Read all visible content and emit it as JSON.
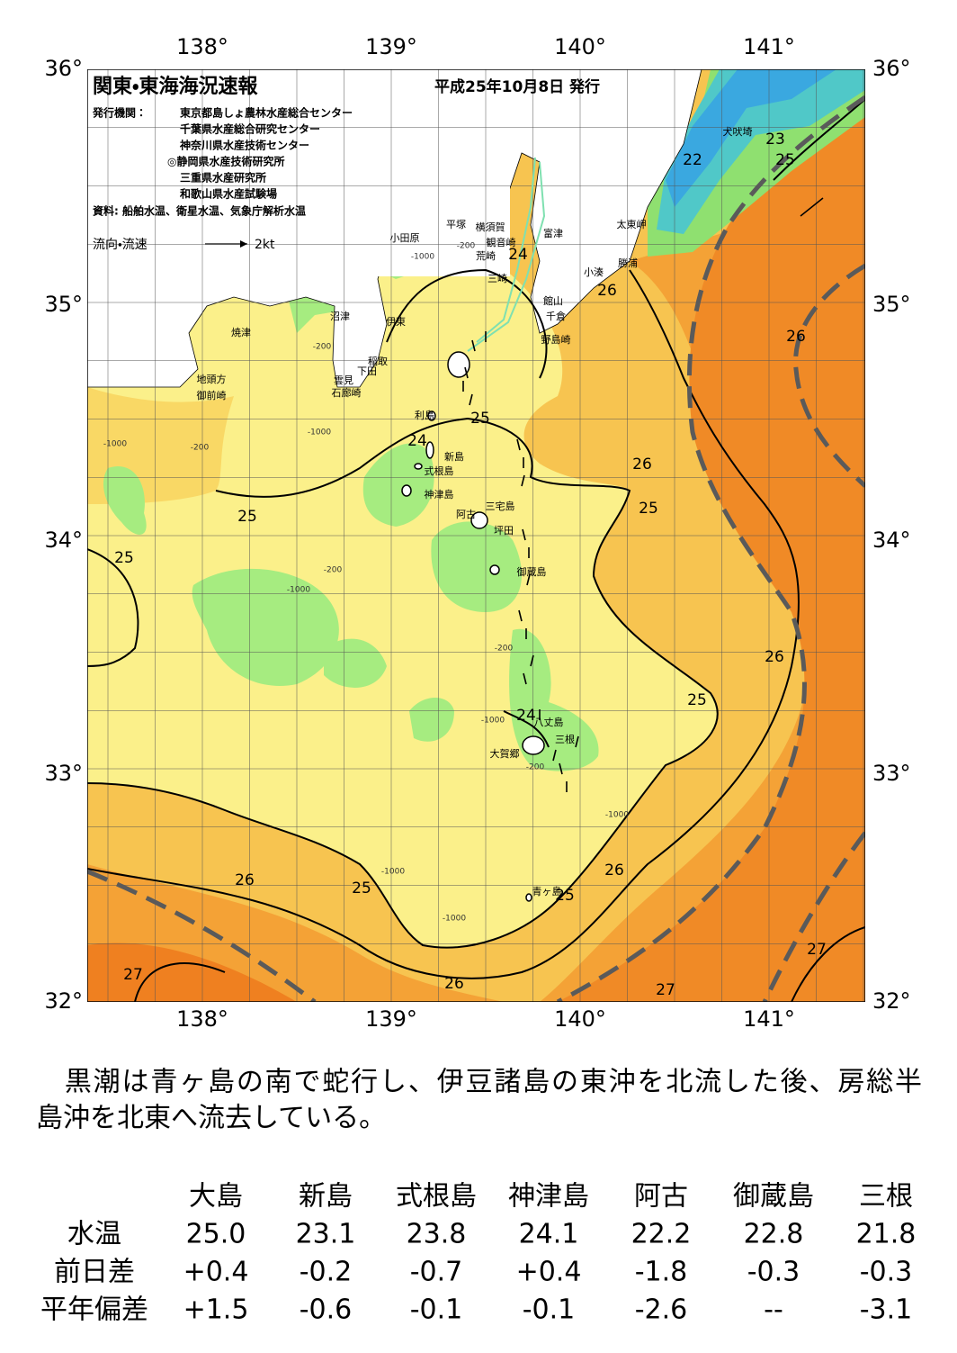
{
  "map": {
    "title": "関東・東海海況速報",
    "date": "平成25年10月8日 発行",
    "publisher_label": "発行機関：",
    "publishers": [
      "東京都島しょ農林水産総合センター",
      "千葉県水産総合研究センター",
      "神奈川県水産技術センター",
      "◎静岡県水産技術研究所",
      "三重県水産研究所",
      "和歌山県水産試験場"
    ],
    "source": "資料: 船舶水温、衛星水温、気象庁解析水温",
    "legend_label": "流向・流速",
    "legend_speed": "2kt",
    "lon_labels": [
      "138°",
      "139°",
      "140°",
      "141°"
    ],
    "lat_labels": [
      "36°",
      "35°",
      "34°",
      "33°",
      "32°"
    ],
    "place_names": [
      "犬吠埼",
      "太東岬",
      "勝浦",
      "小湊",
      "富津",
      "館山",
      "千倉",
      "野島崎",
      "横須賀",
      "観音崎",
      "荒崎",
      "三崎",
      "平塚",
      "小田原",
      "沼津",
      "伊東",
      "稲取",
      "下田",
      "雲見",
      "石廊崎",
      "焼津",
      "地頭方",
      "御前崎",
      "利島",
      "新島",
      "式根島",
      "神津島",
      "三宅島",
      "阿古",
      "坪田",
      "御蔵島",
      "八丈島",
      "三根",
      "大賀郷",
      "青ヶ島"
    ],
    "contour_labels": [
      23,
      22,
      25,
      24,
      26,
      26,
      25,
      24,
      26,
      25,
      25,
      25,
      26,
      25,
      24,
      26,
      25,
      26,
      25,
      27,
      26,
      27,
      27
    ],
    "depth_labels": [
      -200,
      -1000,
      -200,
      -1000,
      -200,
      -1000,
      -200,
      -1000,
      -200,
      -1000,
      -1000,
      -1000,
      -200,
      -1000
    ]
  },
  "summary": [
    "　黒潮は青ヶ島の南で蛇行し、伊豆諸島の東沖を北流した後、房総半",
    "島沖を北東へ流去している。"
  ],
  "table": {
    "columns": [
      "大島",
      "新島",
      "式根島",
      "神津島",
      "阿古",
      "御蔵島",
      "三根"
    ],
    "rows": [
      {
        "label": "水温",
        "values": [
          "25.0",
          "23.1",
          "23.8",
          "24.1",
          "22.2",
          "22.8",
          "21.8"
        ]
      },
      {
        "label": "前日差",
        "values": [
          "+0.4",
          "-0.2",
          "-0.7",
          "+0.4",
          "-1.8",
          "-0.3",
          "-0.3"
        ]
      },
      {
        "label": "平年偏差",
        "values": [
          "+1.5",
          "-0.6",
          "-0.1",
          "-0.1",
          "-2.6",
          "--",
          "-3.1"
        ]
      }
    ]
  }
}
